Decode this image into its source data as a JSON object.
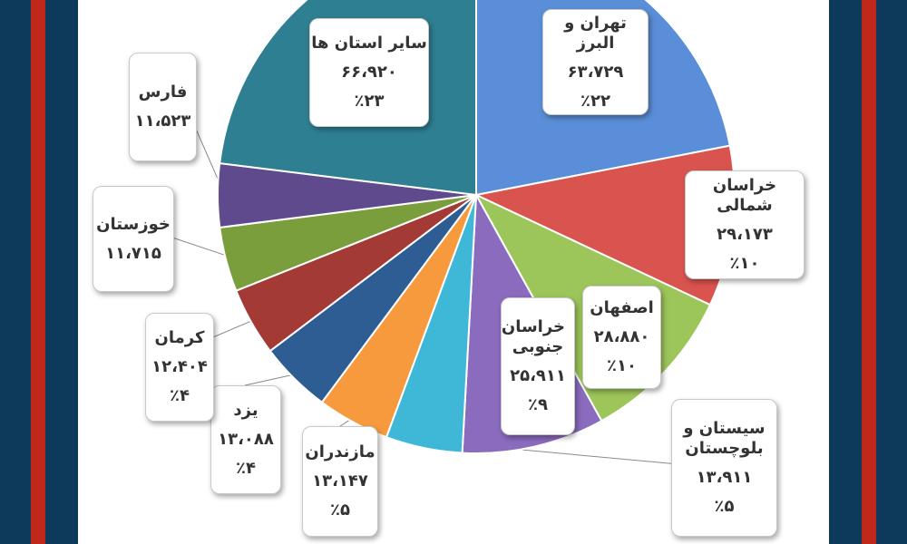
{
  "chart_data": {
    "type": "pie",
    "slices": [
      {
        "label": "تهران و البرز",
        "value": "۶۳،۷۲۹",
        "percent": "٪۲۲",
        "num": 63729,
        "color": "#5b8ed8"
      },
      {
        "label": "خراسان شمالی",
        "value": "۲۹،۱۷۳",
        "percent": "٪۱۰",
        "num": 29173,
        "color": "#d9534f"
      },
      {
        "label": "اصفهان",
        "value": "۲۸،۸۸۰",
        "percent": "٪۱۰",
        "num": 28880,
        "color": "#9cc55a"
      },
      {
        "label": "خراسان جنوبی",
        "value": "۲۵،۹۱۱",
        "percent": "٪۹",
        "num": 25911,
        "color": "#8a6bbd"
      },
      {
        "label": "سیستان و بلوچستان",
        "value": "۱۳،۹۱۱",
        "percent": "٪۵",
        "num": 13911,
        "color": "#3fb8d8"
      },
      {
        "label": "مازندران",
        "value": "۱۳،۱۴۷",
        "percent": "٪۵",
        "num": 13147,
        "color": "#f79a3e"
      },
      {
        "label": "یزد",
        "value": "۱۳،۰۸۸",
        "percent": "٪۴",
        "num": 13088,
        "color": "#2e5d94"
      },
      {
        "label": "کرمان",
        "value": "۱۲،۴۰۴",
        "percent": "٪۴",
        "num": 12404,
        "color": "#a33a36"
      },
      {
        "label": "خوزستان",
        "value": "۱۱،۷۱۵",
        "percent": "",
        "num": 11715,
        "color": "#7a9e3c"
      },
      {
        "label": "فارس",
        "value": "۱۱،۵۲۳",
        "percent": "",
        "num": 11523,
        "color": "#5e4a8c"
      },
      {
        "label": "سایر استان ها",
        "value": "۶۶،۹۲۰",
        "percent": "٪۲۳",
        "num": 66920,
        "color": "#2e7f91"
      }
    ]
  }
}
